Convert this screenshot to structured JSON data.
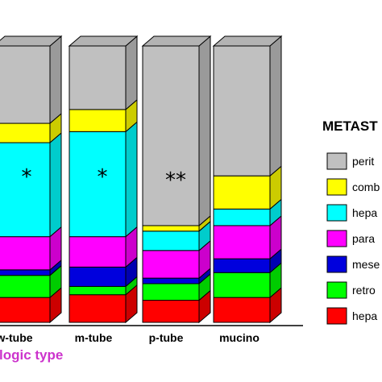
{
  "chart_data": {
    "type": "bar",
    "stacked": true,
    "three_d": true,
    "unit": "percent",
    "categories": [
      "w-tube",
      "m-tube",
      "p-tube",
      "mucino"
    ],
    "xlabel": "logic type",
    "legend_title": "METAST",
    "legend_position": "right",
    "ylim": [
      0,
      100
    ],
    "series": [
      {
        "name": "hepa",
        "color": "#ff0000",
        "values": [
          9,
          10,
          8,
          9
        ]
      },
      {
        "name": "retro",
        "color": "#00ff00",
        "values": [
          8,
          3,
          6,
          9
        ]
      },
      {
        "name": "mese",
        "color": "#0000dd",
        "values": [
          2,
          7,
          2,
          5
        ]
      },
      {
        "name": "para",
        "color": "#ff00ff",
        "values": [
          12,
          11,
          10,
          12
        ]
      },
      {
        "name": "hepa",
        "color": "#00ffff",
        "values": [
          34,
          38,
          7,
          6
        ]
      },
      {
        "name": "comb",
        "color": "#ffff00",
        "values": [
          7,
          8,
          2,
          12
        ]
      },
      {
        "name": "perit",
        "color": "#c0c0c0",
        "values": [
          28,
          23,
          65,
          47
        ]
      }
    ],
    "annotations": [
      {
        "category": "w-tube",
        "text": "*"
      },
      {
        "category": "m-tube",
        "text": "*"
      },
      {
        "category": "p-tube",
        "text": "**"
      }
    ]
  }
}
